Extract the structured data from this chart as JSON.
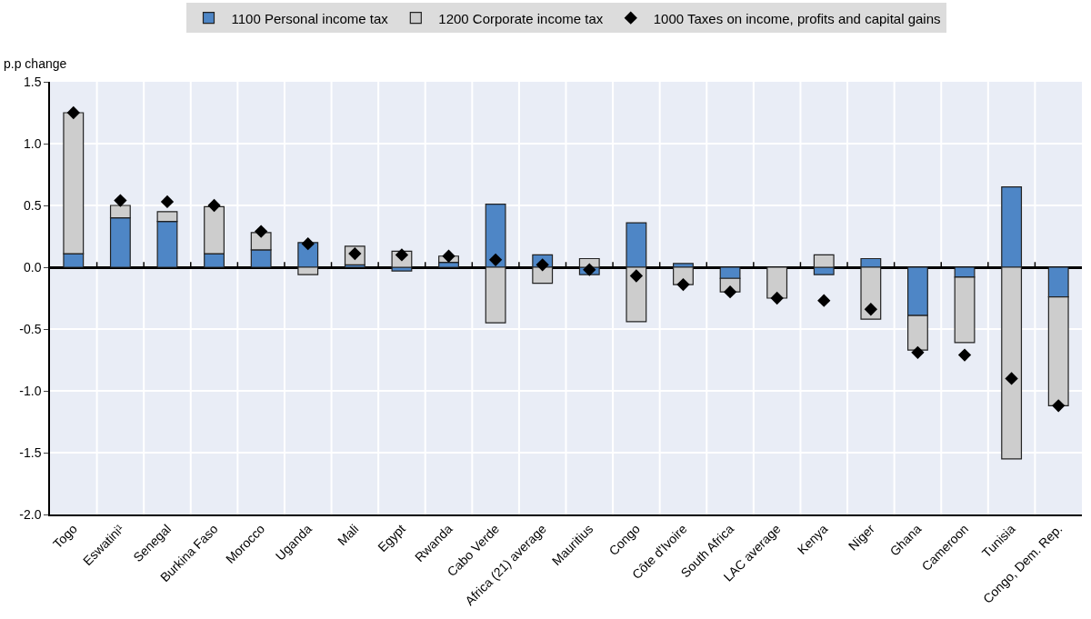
{
  "chart_data": {
    "type": "bar",
    "stacked": true,
    "ylabel": "p.p change",
    "categories": [
      "Togo",
      "Eswatini¹",
      "Senegal",
      "Burkina Faso",
      "Morocco",
      "Uganda",
      "Mali",
      "Egypt",
      "Rwanda",
      "Cabo Verde",
      "Africa (21) average",
      "Mauritius",
      "Congo",
      "Côte d'Ivoire",
      "South Africa",
      "LAC average",
      "Kenya",
      "Niger",
      "Ghana",
      "Cameroon",
      "Tunisia",
      "Congo, Dem. Rep."
    ],
    "series": [
      {
        "name": "1100 Personal income tax",
        "color": "#4e86c6",
        "values": [
          0.11,
          0.4,
          0.37,
          0.11,
          0.14,
          0.2,
          0.02,
          -0.03,
          0.04,
          0.51,
          0.1,
          -0.06,
          0.36,
          0.03,
          -0.09,
          null,
          -0.06,
          0.07,
          -0.39,
          -0.08,
          0.65,
          -0.24
        ]
      },
      {
        "name": "1200 Corporate income tax",
        "color": "#cdcdcd",
        "values": [
          1.14,
          0.1,
          0.08,
          0.38,
          0.14,
          -0.06,
          0.15,
          0.13,
          0.05,
          -0.45,
          -0.13,
          0.07,
          -0.44,
          -0.14,
          -0.11,
          -0.25,
          0.1,
          -0.42,
          -0.28,
          -0.53,
          -1.55,
          -0.88
        ]
      },
      {
        "name": "1000 Taxes on income, profits and capital gains",
        "color": "#000000",
        "type": "scatter",
        "marker": "diamond",
        "values": [
          1.25,
          0.54,
          0.53,
          0.5,
          0.29,
          0.19,
          0.11,
          0.1,
          0.09,
          0.06,
          0.02,
          -0.02,
          -0.07,
          -0.14,
          -0.2,
          -0.25,
          -0.27,
          -0.34,
          -0.69,
          -0.71,
          -0.9,
          -1.12
        ]
      }
    ],
    "ylim": [
      -2.0,
      1.5
    ],
    "yticks": [
      {
        "value": -2.0,
        "label": "-2.0"
      },
      {
        "value": -1.5,
        "label": "-1.5"
      },
      {
        "value": -1.0,
        "label": "-1.0"
      },
      {
        "value": -0.5,
        "label": "-0.5"
      },
      {
        "value": 0.0,
        "label": "0.0"
      },
      {
        "value": 0.5,
        "label": "0.5"
      },
      {
        "value": 1.0,
        "label": "1.0"
      },
      {
        "value": 1.5,
        "label": "1.5"
      }
    ],
    "grid": true,
    "legend": "top"
  }
}
